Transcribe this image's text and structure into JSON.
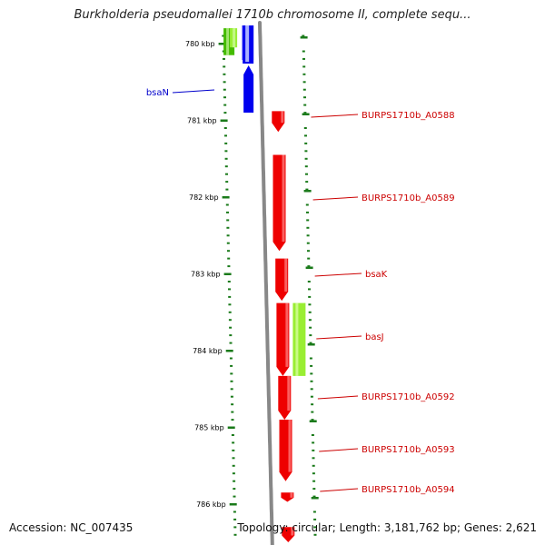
{
  "title": "Burkholderia pseudomallei 1710b chromosome II, complete sequ...",
  "footer": {
    "accession": "Accession: NC_007435",
    "stats": "Topology: circular; Length: 3,181,762 bp; Genes: 2,621"
  },
  "colors": {
    "backbone": "#888888",
    "tick": "#1a7a1a",
    "forward_gene": "#ee0000",
    "reverse_gene": "#0000ee",
    "green_gene": "#44bb00",
    "lime_gene": "#99ee33",
    "label_red": "#cc0000",
    "label_blue": "#0000cc"
  },
  "map": {
    "major_ticks": [
      {
        "kbp": 780,
        "label": "780 kbp"
      },
      {
        "kbp": 781,
        "label": "781 kbp"
      },
      {
        "kbp": 782,
        "label": "782 kbp"
      },
      {
        "kbp": 783,
        "label": "783 kbp"
      },
      {
        "kbp": 784,
        "label": "784 kbp"
      },
      {
        "kbp": 785,
        "label": "785 kbp"
      },
      {
        "kbp": 786,
        "label": "786 kbp"
      }
    ],
    "genes": [
      {
        "name": "green-1",
        "strand": "reverse",
        "color": "green",
        "start": 779.8,
        "end": 780.15,
        "label": ""
      },
      {
        "name": "green-2",
        "strand": "reverse",
        "color": "lime",
        "start": 779.8,
        "end": 780.05,
        "label": ""
      },
      {
        "name": "bsaN",
        "strand": "reverse",
        "color": "blue",
        "start": 779.8,
        "end": 780.9,
        "label": "bsaN"
      },
      {
        "name": "BURPS1710b_A0588",
        "strand": "forward",
        "color": "red",
        "start": 780.88,
        "end": 781.15,
        "label": "BURPS1710b_A0588"
      },
      {
        "name": "BURPS1710b_A0589",
        "strand": "forward",
        "color": "red",
        "start": 781.45,
        "end": 782.7,
        "label": "BURPS1710b_A0589"
      },
      {
        "name": "bsaK",
        "strand": "forward",
        "color": "red",
        "start": 782.8,
        "end": 783.35,
        "label": "bsaK"
      },
      {
        "name": "basJ",
        "strand": "forward2",
        "color": "lime",
        "start": 783.38,
        "end": 784.33,
        "label": "basJ"
      },
      {
        "name": "BURPS1710b_A0591",
        "strand": "forward",
        "color": "red",
        "start": 783.38,
        "end": 784.33,
        "label": ""
      },
      {
        "name": "BURPS1710b_A0592",
        "strand": "forward",
        "color": "red",
        "start": 784.33,
        "end": 784.9,
        "label": "BURPS1710b_A0592"
      },
      {
        "name": "BURPS1710b_A0593",
        "strand": "forward",
        "color": "red",
        "start": 784.9,
        "end": 785.7,
        "label": "BURPS1710b_A0593"
      },
      {
        "name": "BURPS1710b_A0594",
        "strand": "forward",
        "color": "red",
        "start": 785.85,
        "end": 785.97,
        "label": "BURPS1710b_A0594"
      },
      {
        "name": "BURPS1710b_A0595",
        "strand": "forward",
        "color": "red",
        "start": 786.3,
        "end": 786.6,
        "label": ""
      }
    ]
  }
}
